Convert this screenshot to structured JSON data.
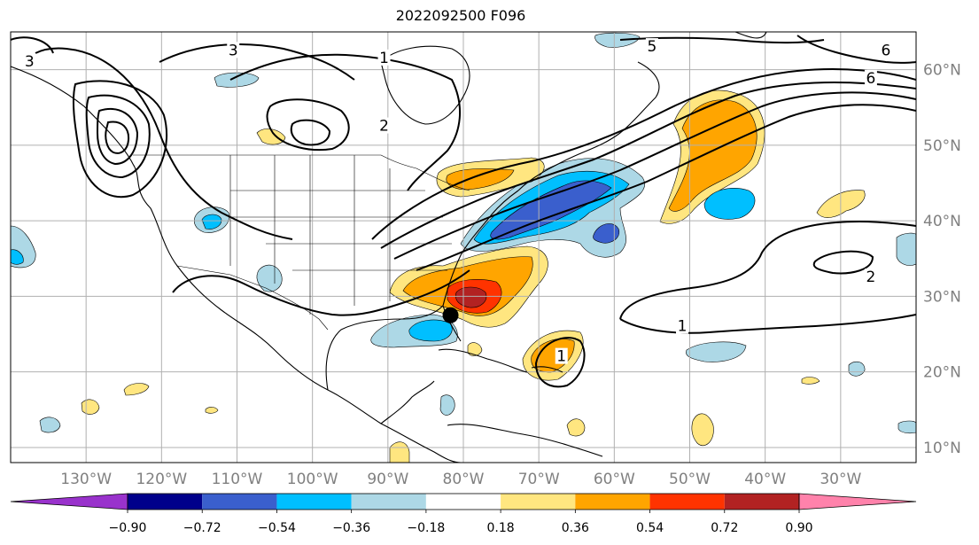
{
  "title": "2022092500 F096",
  "map": {
    "lon_min": -140,
    "lon_max": -20,
    "lat_min": 8,
    "lat_max": 65,
    "lon_ticks": [
      {
        "value": -130,
        "label": "130°W"
      },
      {
        "value": -120,
        "label": "120°W"
      },
      {
        "value": -110,
        "label": "110°W"
      },
      {
        "value": -100,
        "label": "100°W"
      },
      {
        "value": -90,
        "label": "90°W"
      },
      {
        "value": -80,
        "label": "80°W"
      },
      {
        "value": -70,
        "label": "70°W"
      },
      {
        "value": -60,
        "label": "60°W"
      },
      {
        "value": -50,
        "label": "50°W"
      },
      {
        "value": -40,
        "label": "40°W"
      },
      {
        "value": -30,
        "label": "30°W"
      }
    ],
    "lat_ticks": [
      {
        "value": 10,
        "label": "10°N"
      },
      {
        "value": 20,
        "label": "20°N"
      },
      {
        "value": 30,
        "label": "30°N"
      },
      {
        "value": 40,
        "label": "40°N"
      },
      {
        "value": 50,
        "label": "50°N"
      },
      {
        "value": 60,
        "label": "60°N"
      }
    ],
    "gridlines": true,
    "marker": {
      "name": "storm-center",
      "lon": -81.7,
      "lat": 27.5,
      "color": "#000000"
    },
    "contour_labels": [
      {
        "text": "3",
        "lon": -137.5,
        "lat": 61.0
      },
      {
        "text": "3",
        "lon": -110.5,
        "lat": 62.5
      },
      {
        "text": "1",
        "lon": -90.5,
        "lat": 61.5
      },
      {
        "text": "2",
        "lon": -90.5,
        "lat": 52.5
      },
      {
        "text": "5",
        "lon": -55.0,
        "lat": 63.0
      },
      {
        "text": "6",
        "lon": -24.0,
        "lat": 62.5
      },
      {
        "text": "6",
        "lon": -26.0,
        "lat": 58.8
      },
      {
        "text": "2",
        "lon": -26.0,
        "lat": 32.5
      },
      {
        "text": "1",
        "lon": -51.0,
        "lat": 26.0
      },
      {
        "text": "1",
        "lon": -67.0,
        "lat": 22.0
      }
    ]
  },
  "colorbar": {
    "colors": [
      "#9932cc",
      "#00008b",
      "#3a5fcd",
      "#00bfff",
      "#add8e6",
      "#ffffff",
      "#ffe680",
      "#ffa500",
      "#ff3300",
      "#b22222",
      "#ff82ab"
    ],
    "tick_labels": [
      "−0.90",
      "−0.72",
      "−0.54",
      "−0.36",
      "−0.18",
      "0.18",
      "0.36",
      "0.54",
      "0.72",
      "0.90"
    ]
  }
}
